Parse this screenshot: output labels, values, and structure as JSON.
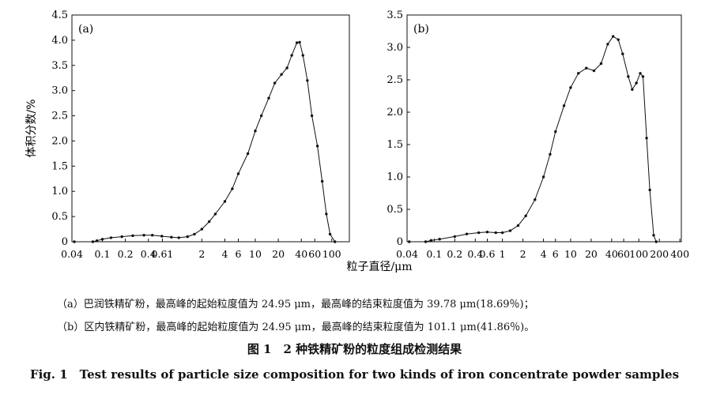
{
  "chart_data": [
    {
      "type": "line",
      "panel_label": "(a)",
      "ylabel": "体积分数/%",
      "xlabel": "粒子直径/μm",
      "x_scale": "log",
      "xlim": [
        0.04,
        170
      ],
      "ylim": [
        0,
        4.5
      ],
      "y_ticks": [
        "0",
        "0.5",
        "1.0",
        "1.5",
        "2.0",
        "2.5",
        "3.0",
        "3.5",
        "4.0",
        "4.5"
      ],
      "x_ticks": [
        {
          "label": "0.04",
          "value": 0.04
        },
        {
          "label": "0.1",
          "value": 0.1
        },
        {
          "label": "0.2",
          "value": 0.2
        },
        {
          "label": "0.4",
          "value": 0.4
        },
        {
          "label": "0.61",
          "value": 0.61
        },
        {
          "label": "2",
          "value": 2
        },
        {
          "label": "4",
          "value": 4
        },
        {
          "label": "6",
          "value": 6
        },
        {
          "label": "10",
          "value": 10
        },
        {
          "label": "20",
          "value": 20
        },
        {
          "label": "40",
          "value": 40
        },
        {
          "label": "60",
          "value": 60
        },
        {
          "label": "100",
          "value": 100
        }
      ],
      "series": [
        {
          "points": [
            [
              0.043,
              0.0
            ],
            [
              0.075,
              0.0
            ],
            [
              0.085,
              0.02
            ],
            [
              0.1,
              0.05
            ],
            [
              0.13,
              0.08
            ],
            [
              0.18,
              0.1
            ],
            [
              0.25,
              0.12
            ],
            [
              0.35,
              0.13
            ],
            [
              0.45,
              0.13
            ],
            [
              0.6,
              0.11
            ],
            [
              0.8,
              0.09
            ],
            [
              1.0,
              0.08
            ],
            [
              1.3,
              0.1
            ],
            [
              1.6,
              0.15
            ],
            [
              2.0,
              0.25
            ],
            [
              2.5,
              0.4
            ],
            [
              3.0,
              0.55
            ],
            [
              4.0,
              0.8
            ],
            [
              5.0,
              1.05
            ],
            [
              6.0,
              1.35
            ],
            [
              8.0,
              1.75
            ],
            [
              10.0,
              2.2
            ],
            [
              12.0,
              2.5
            ],
            [
              15.0,
              2.85
            ],
            [
              18.0,
              3.15
            ],
            [
              22.0,
              3.32
            ],
            [
              26.0,
              3.45
            ],
            [
              30.0,
              3.7
            ],
            [
              35.0,
              3.95
            ],
            [
              38.0,
              3.96
            ],
            [
              42.0,
              3.7
            ],
            [
              48.0,
              3.2
            ],
            [
              55.0,
              2.5
            ],
            [
              65.0,
              1.9
            ],
            [
              75.0,
              1.2
            ],
            [
              85.0,
              0.55
            ],
            [
              95.0,
              0.15
            ],
            [
              110.0,
              0.0
            ]
          ]
        }
      ]
    },
    {
      "type": "line",
      "panel_label": "(b)",
      "ylabel": "",
      "xlabel": "粒子直径/μm",
      "x_scale": "log",
      "xlim": [
        0.04,
        420
      ],
      "ylim": [
        0,
        3.5
      ],
      "y_ticks": [
        "0",
        "0.5",
        "1.0",
        "1.5",
        "2.0",
        "2.5",
        "3.0",
        "3.5"
      ],
      "x_ticks": [
        {
          "label": "0.04",
          "value": 0.04
        },
        {
          "label": "0.1",
          "value": 0.1
        },
        {
          "label": "0.2",
          "value": 0.2
        },
        {
          "label": "0.4",
          "value": 0.4
        },
        {
          "label": "0.6",
          "value": 0.6
        },
        {
          "label": "1",
          "value": 1
        },
        {
          "label": "2",
          "value": 2
        },
        {
          "label": "4",
          "value": 4
        },
        {
          "label": "6",
          "value": 6
        },
        {
          "label": "10",
          "value": 10
        },
        {
          "label": "20",
          "value": 20
        },
        {
          "label": "40",
          "value": 40
        },
        {
          "label": "60",
          "value": 60
        },
        {
          "label": "100",
          "value": 100
        },
        {
          "label": "200",
          "value": 200
        },
        {
          "label": "400",
          "value": 400
        }
      ],
      "series": [
        {
          "points": [
            [
              0.043,
              0.0
            ],
            [
              0.075,
              0.0
            ],
            [
              0.09,
              0.02
            ],
            [
              0.12,
              0.04
            ],
            [
              0.2,
              0.08
            ],
            [
              0.3,
              0.12
            ],
            [
              0.45,
              0.14
            ],
            [
              0.6,
              0.15
            ],
            [
              0.8,
              0.14
            ],
            [
              1.0,
              0.14
            ],
            [
              1.3,
              0.17
            ],
            [
              1.7,
              0.25
            ],
            [
              2.2,
              0.4
            ],
            [
              3.0,
              0.65
            ],
            [
              4.0,
              1.0
            ],
            [
              5.0,
              1.35
            ],
            [
              6.0,
              1.7
            ],
            [
              8.0,
              2.1
            ],
            [
              10.0,
              2.38
            ],
            [
              13.0,
              2.6
            ],
            [
              17.0,
              2.68
            ],
            [
              22.0,
              2.64
            ],
            [
              28.0,
              2.75
            ],
            [
              35.0,
              3.05
            ],
            [
              42.0,
              3.17
            ],
            [
              50.0,
              3.12
            ],
            [
              58.0,
              2.9
            ],
            [
              70.0,
              2.55
            ],
            [
              80.0,
              2.35
            ],
            [
              92.0,
              2.45
            ],
            [
              105.0,
              2.6
            ],
            [
              115.0,
              2.55
            ],
            [
              130.0,
              1.6
            ],
            [
              145.0,
              0.8
            ],
            [
              165.0,
              0.1
            ],
            [
              180.0,
              0.0
            ]
          ]
        }
      ]
    }
  ],
  "captions": {
    "note_a": "（a）巴润铁精矿粉，最高峰的起始粒度值为 24.95 μm，最高峰的结束粒度值为 39.78 μm(18.69％)；",
    "note_b": "（b）区内铁精矿粉，最高峰的起始粒度值为 24.95 μm，最高峰的结束粒度值为 101.1 μm(41.86％)。",
    "title_cn": "图 1　2 种铁精矿粉的粒度组成检测结果",
    "title_en": "Fig. 1　Test results of particle size composition for two kinds of iron concentrate powder samples"
  }
}
